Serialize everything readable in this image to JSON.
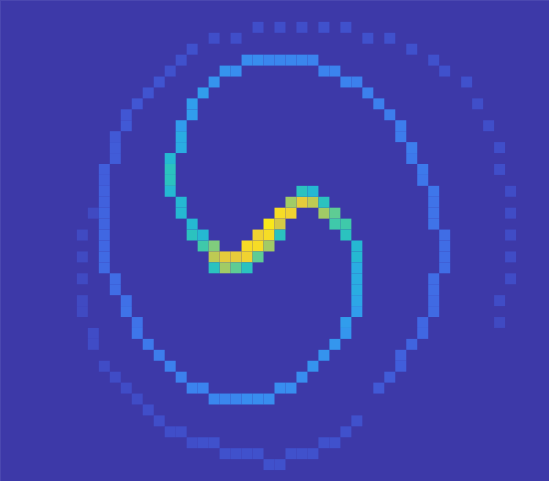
{
  "chart_data": {
    "type": "heatmap",
    "xlim": [
      0,
      50
    ],
    "ylim": [
      0,
      44
    ],
    "tick_labels": false,
    "clim": [
      0,
      1
    ],
    "cells": [
      [
        18,
        22,
        0.55
      ],
      [
        19,
        22,
        0.65
      ],
      [
        19,
        23,
        0.75
      ],
      [
        20,
        23,
        0.85
      ],
      [
        21,
        23,
        0.85
      ],
      [
        22,
        23,
        0.9
      ],
      [
        22,
        22,
        0.95
      ],
      [
        23,
        22,
        0.95
      ],
      [
        23,
        21,
        0.9
      ],
      [
        24,
        21,
        0.95
      ],
      [
        24,
        20,
        1.0
      ],
      [
        25,
        19,
        0.95
      ],
      [
        26,
        19,
        0.9
      ],
      [
        27,
        18,
        0.85
      ],
      [
        28,
        18,
        0.75
      ],
      [
        29,
        19,
        0.7
      ],
      [
        30,
        19,
        0.6
      ],
      [
        20,
        24,
        0.7
      ],
      [
        21,
        24,
        0.6
      ],
      [
        22,
        24,
        0.5
      ],
      [
        24,
        22,
        0.7
      ],
      [
        25,
        20,
        0.8
      ],
      [
        26,
        18,
        0.7
      ],
      [
        27,
        17,
        0.5
      ],
      [
        28,
        17,
        0.45
      ],
      [
        17,
        21,
        0.5
      ],
      [
        18,
        21,
        0.45
      ],
      [
        19,
        24,
        0.5
      ],
      [
        23,
        23,
        0.6
      ],
      [
        25,
        21,
        0.5
      ],
      [
        29,
        18,
        0.5
      ],
      [
        30,
        20,
        0.55
      ],
      [
        31,
        20,
        0.55
      ],
      [
        31,
        21,
        0.5
      ],
      [
        17,
        20,
        0.45
      ],
      [
        16,
        19,
        0.45
      ],
      [
        16,
        18,
        0.45
      ],
      [
        15,
        17,
        0.45
      ],
      [
        15,
        16,
        0.5
      ],
      [
        15,
        15,
        0.5
      ],
      [
        15,
        14,
        0.45
      ],
      [
        16,
        13,
        0.4
      ],
      [
        16,
        12,
        0.4
      ],
      [
        16,
        11,
        0.35
      ],
      [
        17,
        10,
        0.35
      ],
      [
        17,
        9,
        0.35
      ],
      [
        18,
        8,
        0.35
      ],
      [
        19,
        7,
        0.32
      ],
      [
        20,
        6,
        0.32
      ],
      [
        21,
        6,
        0.3
      ],
      [
        22,
        5,
        0.3
      ],
      [
        23,
        5,
        0.3
      ],
      [
        24,
        5,
        0.28
      ],
      [
        25,
        5,
        0.28
      ],
      [
        26,
        5,
        0.28
      ],
      [
        27,
        5,
        0.28
      ],
      [
        28,
        5,
        0.27
      ],
      [
        29,
        6,
        0.27
      ],
      [
        30,
        6,
        0.27
      ],
      [
        31,
        7,
        0.27
      ],
      [
        32,
        7,
        0.26
      ],
      [
        33,
        8,
        0.26
      ],
      [
        34,
        9,
        0.26
      ],
      [
        35,
        10,
        0.25
      ],
      [
        36,
        11,
        0.25
      ],
      [
        36,
        12,
        0.25
      ],
      [
        37,
        13,
        0.25
      ],
      [
        37,
        14,
        0.24
      ],
      [
        38,
        15,
        0.24
      ],
      [
        38,
        16,
        0.23
      ],
      [
        39,
        17,
        0.23
      ],
      [
        39,
        18,
        0.22
      ],
      [
        39,
        19,
        0.22
      ],
      [
        39,
        20,
        0.22
      ],
      [
        40,
        21,
        0.2
      ],
      [
        40,
        22,
        0.2
      ],
      [
        40,
        23,
        0.2
      ],
      [
        40,
        24,
        0.2
      ],
      [
        39,
        25,
        0.2
      ],
      [
        39,
        26,
        0.2
      ],
      [
        39,
        27,
        0.19
      ],
      [
        39,
        28,
        0.19
      ],
      [
        38,
        29,
        0.18
      ],
      [
        38,
        30,
        0.18
      ],
      [
        37,
        31,
        0.17
      ],
      [
        36,
        32,
        0.16
      ],
      [
        36,
        33,
        0.15
      ],
      [
        35,
        34,
        0.14
      ],
      [
        34,
        35,
        0.13
      ],
      [
        32,
        38,
        0.1
      ],
      [
        31,
        39,
        0.1
      ],
      [
        30,
        40,
        0.1
      ],
      [
        29,
        40,
        0.1
      ],
      [
        28,
        41,
        0.1
      ],
      [
        27,
        41,
        0.1
      ],
      [
        26,
        41,
        0.1
      ],
      [
        25,
        42,
        0.1
      ],
      [
        24,
        42,
        0.1
      ],
      [
        23,
        41,
        0.1
      ],
      [
        22,
        41,
        0.1
      ],
      [
        21,
        41,
        0.1
      ],
      [
        20,
        41,
        0.1
      ],
      [
        19,
        40,
        0.1
      ],
      [
        18,
        40,
        0.1
      ],
      [
        17,
        40,
        0.09
      ],
      [
        16,
        39,
        0.09
      ],
      [
        15,
        39,
        0.09
      ],
      [
        14,
        38,
        0.09
      ],
      [
        13,
        37,
        0.09
      ],
      [
        12,
        36,
        0.08
      ],
      [
        11,
        35,
        0.08
      ],
      [
        10,
        34,
        0.08
      ],
      [
        9,
        33,
        0.08
      ],
      [
        8,
        31,
        0.08
      ],
      [
        8,
        30,
        0.08
      ],
      [
        7,
        28,
        0.07
      ],
      [
        7,
        27,
        0.07
      ],
      [
        7,
        25,
        0.07
      ],
      [
        7,
        23,
        0.07
      ],
      [
        7,
        21,
        0.07
      ],
      [
        8,
        19,
        0.07
      ],
      [
        32,
        22,
        0.45
      ],
      [
        32,
        23,
        0.45
      ],
      [
        32,
        24,
        0.4
      ],
      [
        32,
        25,
        0.4
      ],
      [
        32,
        26,
        0.4
      ],
      [
        32,
        27,
        0.38
      ],
      [
        32,
        28,
        0.35
      ],
      [
        31,
        29,
        0.35
      ],
      [
        31,
        30,
        0.33
      ],
      [
        30,
        31,
        0.33
      ],
      [
        29,
        32,
        0.32
      ],
      [
        28,
        33,
        0.32
      ],
      [
        27,
        34,
        0.3
      ],
      [
        26,
        35,
        0.3
      ],
      [
        25,
        35,
        0.3
      ],
      [
        24,
        36,
        0.3
      ],
      [
        23,
        36,
        0.3
      ],
      [
        22,
        36,
        0.3
      ],
      [
        21,
        36,
        0.28
      ],
      [
        20,
        36,
        0.28
      ],
      [
        19,
        36,
        0.28
      ],
      [
        18,
        35,
        0.27
      ],
      [
        17,
        35,
        0.27
      ],
      [
        16,
        34,
        0.26
      ],
      [
        15,
        33,
        0.26
      ],
      [
        14,
        32,
        0.25
      ],
      [
        13,
        31,
        0.24
      ],
      [
        12,
        30,
        0.23
      ],
      [
        12,
        29,
        0.22
      ],
      [
        11,
        28,
        0.22
      ],
      [
        11,
        27,
        0.21
      ],
      [
        10,
        26,
        0.2
      ],
      [
        10,
        25,
        0.2
      ],
      [
        9,
        24,
        0.19
      ],
      [
        9,
        23,
        0.19
      ],
      [
        9,
        22,
        0.18
      ],
      [
        9,
        21,
        0.18
      ],
      [
        9,
        20,
        0.17
      ],
      [
        9,
        19,
        0.17
      ],
      [
        9,
        18,
        0.16
      ],
      [
        9,
        17,
        0.16
      ],
      [
        9,
        16,
        0.15
      ],
      [
        9,
        15,
        0.15
      ],
      [
        10,
        14,
        0.14
      ],
      [
        10,
        13,
        0.14
      ],
      [
        10,
        12,
        0.13
      ],
      [
        11,
        11,
        0.13
      ],
      [
        11,
        10,
        0.12
      ],
      [
        12,
        9,
        0.12
      ],
      [
        13,
        8,
        0.11
      ],
      [
        14,
        7,
        0.11
      ],
      [
        15,
        6,
        0.1
      ],
      [
        16,
        5,
        0.1
      ],
      [
        17,
        4,
        0.1
      ],
      [
        19,
        3,
        0.09
      ],
      [
        21,
        3,
        0.09
      ],
      [
        23,
        2,
        0.09
      ],
      [
        25,
        2,
        0.09
      ],
      [
        27,
        2,
        0.09
      ],
      [
        29,
        2,
        0.1
      ],
      [
        31,
        2,
        0.1
      ],
      [
        33,
        3,
        0.1
      ],
      [
        35,
        3,
        0.1
      ],
      [
        37,
        4,
        0.1
      ],
      [
        39,
        5,
        0.1
      ],
      [
        40,
        6,
        0.1
      ],
      [
        42,
        7,
        0.1
      ],
      [
        43,
        9,
        0.09
      ],
      [
        44,
        11,
        0.09
      ],
      [
        45,
        13,
        0.09
      ],
      [
        45,
        15,
        0.09
      ],
      [
        46,
        17,
        0.08
      ],
      [
        46,
        19,
        0.08
      ],
      [
        46,
        21,
        0.08
      ],
      [
        46,
        23,
        0.08
      ],
      [
        46,
        25,
        0.08
      ],
      [
        45,
        27,
        0.08
      ],
      [
        45,
        29,
        0.07
      ]
    ]
  }
}
